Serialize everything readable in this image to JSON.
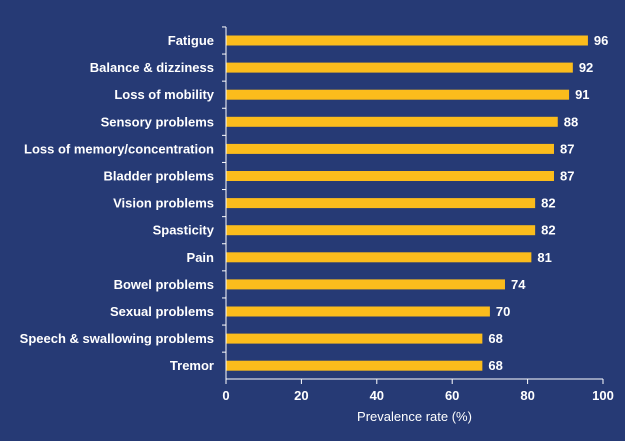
{
  "chart_data": {
    "type": "bar",
    "orientation": "horizontal",
    "categories": [
      "Fatigue",
      "Balance & dizziness",
      "Loss of mobility",
      "Sensory problems",
      "Loss of memory/concentration",
      "Bladder problems",
      "Vision problems",
      "Spasticity",
      "Pain",
      "Bowel problems",
      "Sexual problems",
      "Speech & swallowing problems",
      "Tremor"
    ],
    "values": [
      96,
      92,
      91,
      88,
      87,
      87,
      82,
      82,
      81,
      74,
      70,
      68,
      68
    ],
    "xlabel": "Prevalence rate (%)",
    "xlim": [
      0,
      100
    ],
    "xticks": [
      0,
      20,
      40,
      60,
      80,
      100
    ],
    "grid": false,
    "colors": {
      "background": "#263a75",
      "bar": "#fbbc1c",
      "axis": "#ffffff",
      "text": "#ffffff"
    }
  }
}
